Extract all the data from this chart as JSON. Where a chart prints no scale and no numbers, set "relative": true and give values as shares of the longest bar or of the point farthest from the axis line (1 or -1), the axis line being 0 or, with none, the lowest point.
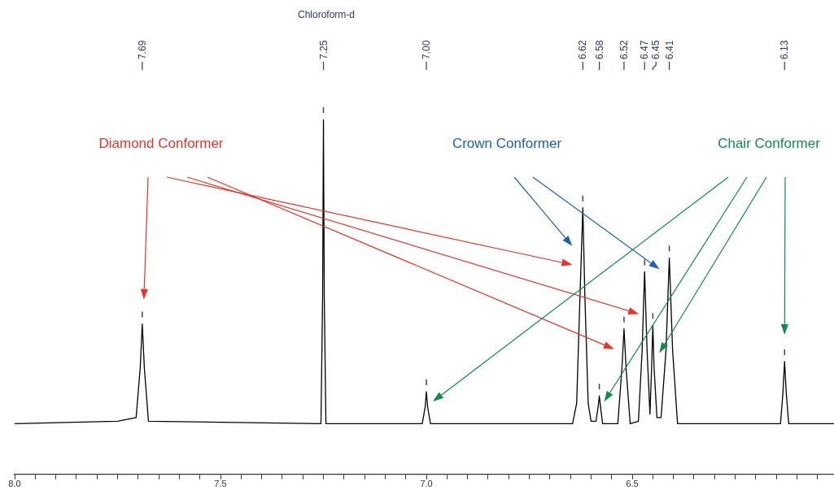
{
  "chart_data": {
    "type": "line",
    "relative": true,
    "grid": false,
    "legend": false,
    "marker": "none",
    "line_style": "solid",
    "tick_labels": "x",
    "xlim": [
      8.0,
      6.01
    ],
    "xticks": [
      {
        "value": 8.0,
        "label": "8.0"
      },
      {
        "value": 7.95,
        "label": null
      },
      {
        "value": 7.9,
        "label": null
      },
      {
        "value": 7.85,
        "label": null
      },
      {
        "value": 7.8,
        "label": null
      },
      {
        "value": 7.75,
        "label": null
      },
      {
        "value": 7.7,
        "label": null
      },
      {
        "value": 7.65,
        "label": null
      },
      {
        "value": 7.6,
        "label": null
      },
      {
        "value": 7.55,
        "label": null
      },
      {
        "value": 7.5,
        "label": "7.5"
      },
      {
        "value": 7.45,
        "label": null
      },
      {
        "value": 7.4,
        "label": null
      },
      {
        "value": 7.35,
        "label": null
      },
      {
        "value": 7.3,
        "label": null
      },
      {
        "value": 7.25,
        "label": null
      },
      {
        "value": 7.2,
        "label": null
      },
      {
        "value": 7.15,
        "label": null
      },
      {
        "value": 7.1,
        "label": null
      },
      {
        "value": 7.05,
        "label": null
      },
      {
        "value": 7.0,
        "label": "7.0"
      },
      {
        "value": 6.95,
        "label": null
      },
      {
        "value": 6.9,
        "label": null
      },
      {
        "value": 6.85,
        "label": null
      },
      {
        "value": 6.8,
        "label": null
      },
      {
        "value": 6.75,
        "label": null
      },
      {
        "value": 6.7,
        "label": null
      },
      {
        "value": 6.65,
        "label": null
      },
      {
        "value": 6.6,
        "label": null
      },
      {
        "value": 6.55,
        "label": null
      },
      {
        "value": 6.5,
        "label": "6.5"
      },
      {
        "value": 6.45,
        "label": null
      },
      {
        "value": 6.4,
        "label": null
      },
      {
        "value": 6.35,
        "label": null
      },
      {
        "value": 6.3,
        "label": null
      },
      {
        "value": 6.25,
        "label": null
      },
      {
        "value": 6.2,
        "label": null
      },
      {
        "value": 6.15,
        "label": null
      },
      {
        "value": 6.1,
        "label": null
      },
      {
        "value": 6.05,
        "label": null
      }
    ],
    "series": [
      {
        "color": "#000000",
        "x": [
          8.0,
          7.75,
          7.705,
          7.695,
          7.69,
          7.685,
          7.675,
          7.256,
          7.252,
          7.25,
          7.248,
          7.244,
          7.01,
          7.003,
          7.0,
          6.997,
          6.99,
          6.645,
          6.635,
          6.627,
          6.62,
          6.615,
          6.607,
          6.6,
          6.588,
          6.583,
          6.58,
          6.577,
          6.572,
          6.535,
          6.525,
          6.52,
          6.515,
          6.505,
          6.485,
          6.476,
          6.47,
          6.464,
          6.457,
          6.453,
          6.45,
          6.447,
          6.44,
          6.43,
          6.418,
          6.41,
          6.402,
          6.39,
          6.14,
          6.134,
          6.13,
          6.126,
          6.12,
          6.01
        ],
        "values": [
          0.143,
          0.15,
          0.16,
          0.3,
          0.424,
          0.3,
          0.15,
          0.143,
          0.5,
          1.0,
          0.5,
          0.143,
          0.143,
          0.19,
          0.233,
          0.19,
          0.143,
          0.143,
          0.2,
          0.5,
          0.751,
          0.5,
          0.2,
          0.15,
          0.15,
          0.19,
          0.221,
          0.19,
          0.143,
          0.143,
          0.3,
          0.41,
          0.3,
          0.143,
          0.15,
          0.35,
          0.571,
          0.35,
          0.17,
          0.3,
          0.42,
          0.3,
          0.16,
          0.16,
          0.35,
          0.61,
          0.35,
          0.143,
          0.143,
          0.23,
          0.318,
          0.23,
          0.143,
          0.143
        ]
      }
    ],
    "annotations": [
      "Chloroform-d",
      "Diamond Conformer",
      "Crown Conformer",
      "Chair Conformer",
      "7.69",
      "7.25",
      "7.00",
      "6.62",
      "6.58",
      "6.52",
      "6.47",
      "6.45",
      "6.41",
      "6.13"
    ]
  }
}
